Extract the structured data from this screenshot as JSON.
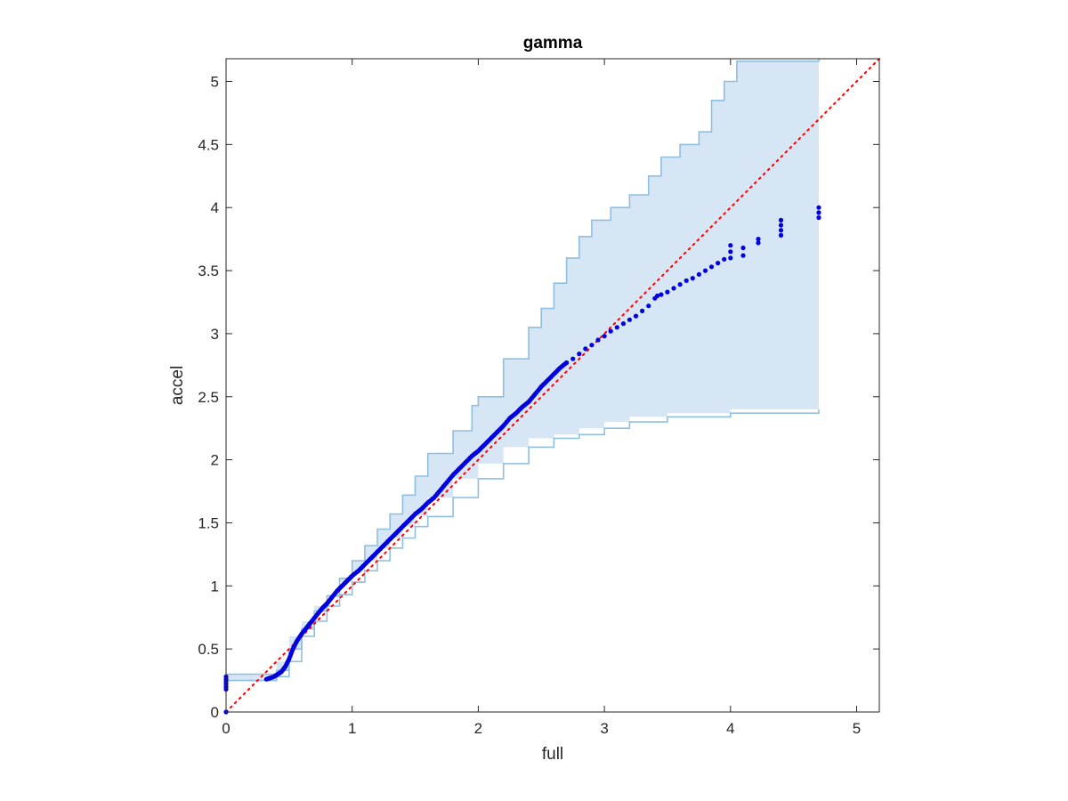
{
  "chart_data": {
    "type": "scatter",
    "title": "gamma",
    "xlabel": "full",
    "ylabel": "accel",
    "xlim": [
      0,
      5.18
    ],
    "ylim": [
      0,
      5.18
    ],
    "xticks": [
      0,
      1,
      2,
      3,
      4,
      5
    ],
    "yticks": [
      0,
      0.5,
      1,
      1.5,
      2,
      2.5,
      3,
      3.5,
      4,
      4.5,
      5
    ],
    "xtick_labels": [
      "0",
      "1",
      "2",
      "3",
      "4",
      "5"
    ],
    "ytick_labels": [
      "0",
      "0.5",
      "1",
      "1.5",
      "2",
      "2.5",
      "3",
      "3.5",
      "4",
      "4.5",
      "5"
    ],
    "grid": false,
    "colors": {
      "points": "#0000e0",
      "band_fill": "#d6e6f4",
      "band_edge": "#8fbfe0",
      "reference_line": "#ff0000",
      "axes": "#262626"
    },
    "reference_line": {
      "style": "dotted",
      "from": [
        0,
        0
      ],
      "to": [
        5.18,
        5.18
      ]
    },
    "band": {
      "upper": [
        [
          0,
          0.3
        ],
        [
          0.1,
          0.3
        ],
        [
          0.2,
          0.3
        ],
        [
          0.3,
          0.3
        ],
        [
          0.4,
          0.33
        ],
        [
          0.5,
          0.5
        ],
        [
          0.6,
          0.66
        ],
        [
          0.7,
          0.8
        ],
        [
          0.8,
          0.92
        ],
        [
          0.9,
          1.06
        ],
        [
          1.0,
          1.2
        ],
        [
          1.1,
          1.32
        ],
        [
          1.2,
          1.45
        ],
        [
          1.3,
          1.57
        ],
        [
          1.4,
          1.72
        ],
        [
          1.5,
          1.87
        ],
        [
          1.6,
          2.05
        ],
        [
          1.8,
          2.23
        ],
        [
          1.95,
          2.43
        ],
        [
          2.0,
          2.5
        ],
        [
          2.2,
          2.8
        ],
        [
          2.4,
          3.05
        ],
        [
          2.5,
          3.2
        ],
        [
          2.6,
          3.4
        ],
        [
          2.7,
          3.6
        ],
        [
          2.8,
          3.77
        ],
        [
          2.9,
          3.9
        ],
        [
          3.05,
          4.0
        ],
        [
          3.2,
          4.1
        ],
        [
          3.35,
          4.25
        ],
        [
          3.45,
          4.4
        ],
        [
          3.6,
          4.5
        ],
        [
          3.75,
          4.6
        ],
        [
          3.85,
          4.85
        ],
        [
          3.95,
          5.0
        ],
        [
          4.05,
          5.16
        ],
        [
          4.7,
          5.18
        ]
      ],
      "lower": [
        [
          0,
          0.25
        ],
        [
          0.3,
          0.25
        ],
        [
          0.4,
          0.28
        ],
        [
          0.5,
          0.4
        ],
        [
          0.6,
          0.6
        ],
        [
          0.7,
          0.72
        ],
        [
          0.8,
          0.84
        ],
        [
          0.9,
          0.93
        ],
        [
          1.0,
          1.03
        ],
        [
          1.1,
          1.12
        ],
        [
          1.2,
          1.2
        ],
        [
          1.3,
          1.3
        ],
        [
          1.4,
          1.38
        ],
        [
          1.5,
          1.47
        ],
        [
          1.6,
          1.55
        ],
        [
          1.8,
          1.7
        ],
        [
          2.0,
          1.85
        ],
        [
          2.2,
          1.97
        ],
        [
          2.4,
          2.1
        ],
        [
          2.6,
          2.17
        ],
        [
          2.8,
          2.2
        ],
        [
          3.0,
          2.25
        ],
        [
          3.2,
          2.3
        ],
        [
          3.5,
          2.34
        ],
        [
          4.0,
          2.37
        ],
        [
          4.7,
          2.4
        ]
      ],
      "x_end": 4.7
    },
    "series": [
      {
        "x": [
          0,
          0,
          0,
          0,
          0,
          0,
          0,
          0.32,
          0.35,
          0.38,
          0.41,
          0.44,
          0.47,
          0.5,
          0.53,
          0.56,
          0.6,
          0.64,
          0.68,
          0.72,
          0.76,
          0.8,
          0.84,
          0.88,
          0.92,
          0.96,
          1.0,
          1.05,
          1.1,
          1.15,
          1.2,
          1.25,
          1.3,
          1.35,
          1.4,
          1.45,
          1.5,
          1.55,
          1.6,
          1.65,
          1.7,
          1.75,
          1.8,
          1.85,
          1.9,
          1.95,
          2.0,
          2.05,
          2.1,
          2.15,
          2.2,
          2.25,
          2.3,
          2.35,
          2.4,
          2.45,
          2.5,
          2.55,
          2.6,
          2.65,
          2.7,
          2.75,
          2.8,
          2.85,
          2.9,
          2.95,
          3.0,
          3.05,
          3.1,
          3.15,
          3.2,
          3.25,
          3.3,
          3.35,
          3.4,
          3.42,
          3.45,
          3.5,
          3.55,
          3.6,
          3.65,
          3.7,
          3.75,
          3.8,
          3.85,
          3.9,
          3.95,
          4.0,
          4.0,
          4.0,
          4.1,
          4.1,
          4.22,
          4.22,
          4.4,
          4.4,
          4.4,
          4.4,
          4.7,
          4.7,
          4.7
        ],
        "y": [
          0,
          0.18,
          0.2,
          0.22,
          0.24,
          0.26,
          0.28,
          0.26,
          0.27,
          0.28,
          0.3,
          0.32,
          0.36,
          0.42,
          0.5,
          0.56,
          0.62,
          0.67,
          0.72,
          0.77,
          0.82,
          0.86,
          0.91,
          0.96,
          1.0,
          1.04,
          1.08,
          1.12,
          1.17,
          1.22,
          1.27,
          1.32,
          1.37,
          1.42,
          1.47,
          1.52,
          1.57,
          1.61,
          1.66,
          1.7,
          1.76,
          1.82,
          1.88,
          1.93,
          1.98,
          2.03,
          2.07,
          2.12,
          2.17,
          2.22,
          2.27,
          2.33,
          2.37,
          2.42,
          2.46,
          2.52,
          2.58,
          2.63,
          2.68,
          2.73,
          2.77,
          2.8,
          2.84,
          2.88,
          2.91,
          2.95,
          2.98,
          3.02,
          3.05,
          3.08,
          3.11,
          3.14,
          3.18,
          3.22,
          3.28,
          3.3,
          3.31,
          3.33,
          3.36,
          3.39,
          3.42,
          3.44,
          3.47,
          3.5,
          3.53,
          3.56,
          3.59,
          3.6,
          3.65,
          3.7,
          3.62,
          3.68,
          3.72,
          3.75,
          3.78,
          3.82,
          3.86,
          3.9,
          3.92,
          3.96,
          4.0
        ]
      }
    ]
  }
}
